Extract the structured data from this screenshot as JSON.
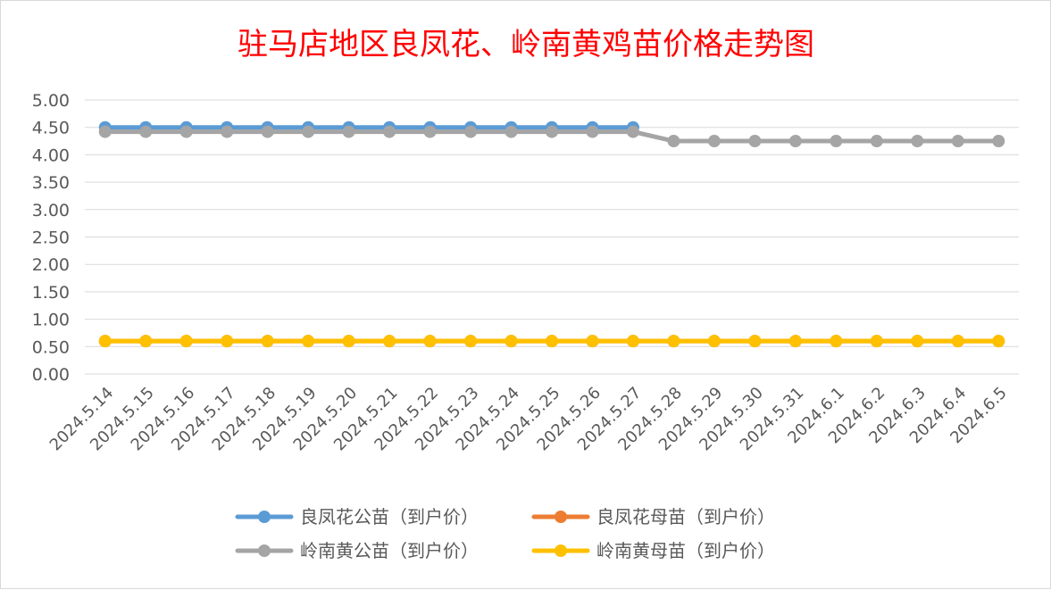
{
  "chart_data": {
    "type": "line",
    "title": "驻马店地区良凤花、岭南黄鸡苗价格走势图",
    "xlabel": "",
    "ylabel": "",
    "ylim": [
      0,
      5
    ],
    "yticks": [
      "0.00",
      "0.50",
      "1.00",
      "1.50",
      "2.00",
      "2.50",
      "3.00",
      "3.50",
      "4.00",
      "4.50",
      "5.00"
    ],
    "grid": true,
    "legend_position": "bottom",
    "categories": [
      "2024.5.14",
      "2024.5.15",
      "2024.5.16",
      "2024.5.17",
      "2024.5.18",
      "2024.5.19",
      "2024.5.20",
      "2024.5.21",
      "2024.5.22",
      "2024.5.23",
      "2024.5.24",
      "2024.5.25",
      "2024.5.26",
      "2024.5.27",
      "2024.5.28",
      "2024.5.29",
      "2024.5.30",
      "2024.5.31",
      "2024.6.1",
      "2024.6.2",
      "2024.6.3",
      "2024.6.4",
      "2024.6.5"
    ],
    "series": [
      {
        "name": "良凤花公苗（到户价）",
        "color": "#5b9bd5",
        "values": [
          4.5,
          4.5,
          4.5,
          4.5,
          4.5,
          4.5,
          4.5,
          4.5,
          4.5,
          4.5,
          4.5,
          4.5,
          4.5,
          4.5,
          null,
          null,
          null,
          null,
          null,
          null,
          null,
          null,
          null
        ]
      },
      {
        "name": "良凤花母苗（到户价）",
        "color": "#ed7d31",
        "values": [
          0.6,
          0.6,
          0.6,
          0.6,
          0.6,
          0.6,
          0.6,
          0.6,
          0.6,
          0.6,
          0.6,
          0.6,
          0.6,
          0.6,
          0.6,
          0.6,
          0.6,
          0.6,
          0.6,
          0.6,
          0.6,
          0.6,
          0.6
        ]
      },
      {
        "name": "岭南黄公苗（到户价）",
        "color": "#a5a5a5",
        "values": [
          4.42,
          4.42,
          4.42,
          4.42,
          4.42,
          4.42,
          4.42,
          4.42,
          4.42,
          4.42,
          4.42,
          4.42,
          4.42,
          4.42,
          4.25,
          4.25,
          4.25,
          4.25,
          4.25,
          4.25,
          4.25,
          4.25,
          4.25
        ]
      },
      {
        "name": "岭南黄母苗（到户价）",
        "color": "#ffc000",
        "values": [
          0.6,
          0.6,
          0.6,
          0.6,
          0.6,
          0.6,
          0.6,
          0.6,
          0.6,
          0.6,
          0.6,
          0.6,
          0.6,
          0.6,
          0.6,
          0.6,
          0.6,
          0.6,
          0.6,
          0.6,
          0.6,
          0.6,
          0.6
        ]
      }
    ]
  }
}
